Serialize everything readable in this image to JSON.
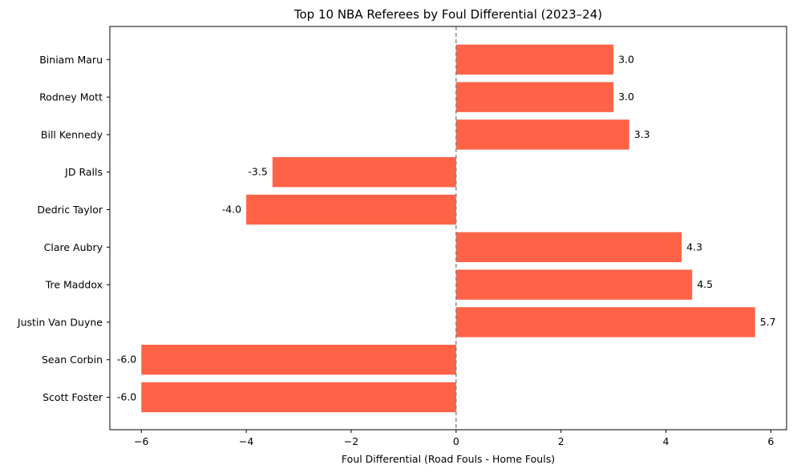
{
  "chart_data": {
    "type": "bar",
    "orientation": "horizontal",
    "title": "Top 10 NBA Referees by Foul Differential (2023–24)",
    "xlabel": "Foul Differential (Road Fouls - Home Fouls)",
    "ylabel": "",
    "xlim": [
      -6.6,
      6.3
    ],
    "xticks": [
      -6,
      -4,
      -2,
      0,
      2,
      4,
      6
    ],
    "xtick_labels": [
      "−6",
      "−4",
      "−2",
      "0",
      "2",
      "4",
      "6"
    ],
    "categories": [
      "Scott Foster",
      "Sean Corbin",
      "Justin Van Duyne",
      "Tre Maddox",
      "Clare Aubry",
      "Dedric Taylor",
      "JD Ralls",
      "Bill Kennedy",
      "Rodney Mott",
      "Biniam Maru"
    ],
    "values": [
      -6.0,
      -6.0,
      5.7,
      4.5,
      4.3,
      -4.0,
      -3.5,
      3.3,
      3.0,
      3.0
    ],
    "value_labels": [
      "-6.0",
      "-6.0",
      "5.7",
      "4.5",
      "4.3",
      "-4.0",
      "-3.5",
      "3.3",
      "3.0",
      "3.0"
    ],
    "bar_color": "#ff6347",
    "zero_line": true,
    "zero_line_color": "#808080",
    "grid": false,
    "legend": false
  }
}
